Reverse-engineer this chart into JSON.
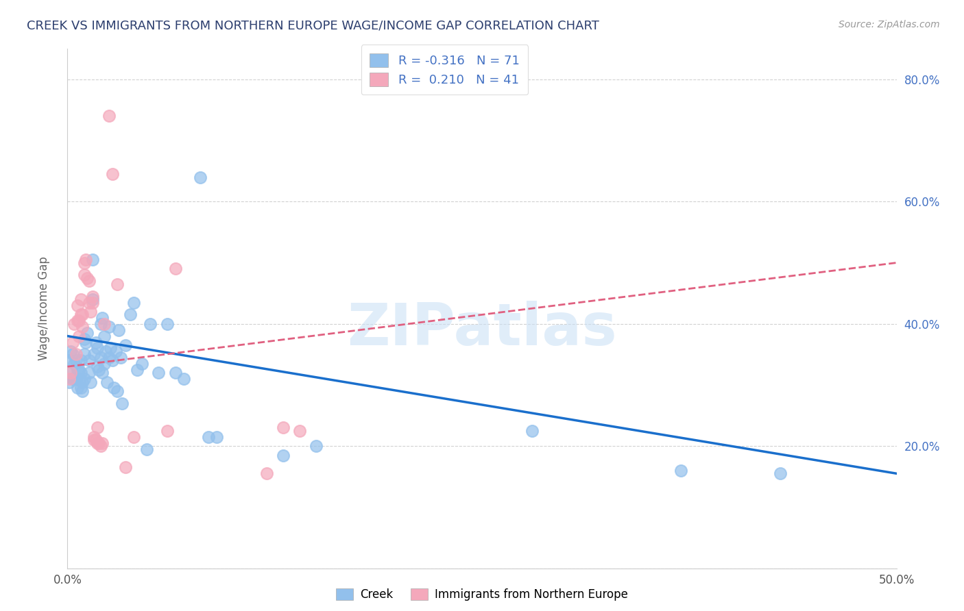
{
  "title": "CREEK VS IMMIGRANTS FROM NORTHERN EUROPE WAGE/INCOME GAP CORRELATION CHART",
  "source": "Source: ZipAtlas.com",
  "ylabel": "Wage/Income Gap",
  "xlabel_creek": "Creek",
  "xlabel_immigrants": "Immigrants from Northern Europe",
  "xmin": 0.0,
  "xmax": 0.5,
  "ymin": 0.0,
  "ymax": 0.85,
  "creek_color": "#92c0ec",
  "immigrants_color": "#f4a8bb",
  "creek_R": -0.316,
  "creek_N": 71,
  "immigrants_R": 0.21,
  "immigrants_N": 41,
  "creek_line_color": "#1a6fcc",
  "immigrants_line_color": "#e06080",
  "watermark": "ZIPatlas",
  "watermark_color": "#c8dff5",
  "title_color": "#2c3e6e",
  "source_color": "#999999",
  "grid_color": "#cccccc",
  "right_axis_color": "#4472c4",
  "creek_points_x": [
    0.001,
    0.001,
    0.002,
    0.002,
    0.003,
    0.003,
    0.004,
    0.004,
    0.005,
    0.005,
    0.006,
    0.006,
    0.007,
    0.007,
    0.008,
    0.008,
    0.008,
    0.009,
    0.009,
    0.01,
    0.01,
    0.01,
    0.011,
    0.012,
    0.013,
    0.013,
    0.014,
    0.015,
    0.015,
    0.016,
    0.017,
    0.018,
    0.018,
    0.019,
    0.02,
    0.02,
    0.021,
    0.021,
    0.022,
    0.022,
    0.023,
    0.024,
    0.025,
    0.025,
    0.026,
    0.027,
    0.028,
    0.029,
    0.03,
    0.031,
    0.032,
    0.033,
    0.035,
    0.038,
    0.04,
    0.042,
    0.045,
    0.048,
    0.05,
    0.055,
    0.06,
    0.065,
    0.07,
    0.08,
    0.085,
    0.09,
    0.13,
    0.15,
    0.28,
    0.37,
    0.43
  ],
  "creek_points_y": [
    0.34,
    0.305,
    0.355,
    0.32,
    0.35,
    0.31,
    0.335,
    0.31,
    0.31,
    0.34,
    0.325,
    0.295,
    0.325,
    0.31,
    0.34,
    0.32,
    0.295,
    0.305,
    0.29,
    0.35,
    0.375,
    0.31,
    0.37,
    0.385,
    0.32,
    0.34,
    0.305,
    0.505,
    0.44,
    0.35,
    0.37,
    0.36,
    0.33,
    0.325,
    0.4,
    0.345,
    0.41,
    0.32,
    0.38,
    0.335,
    0.355,
    0.305,
    0.395,
    0.345,
    0.36,
    0.34,
    0.295,
    0.355,
    0.29,
    0.39,
    0.345,
    0.27,
    0.365,
    0.415,
    0.435,
    0.325,
    0.335,
    0.195,
    0.4,
    0.32,
    0.4,
    0.32,
    0.31,
    0.64,
    0.215,
    0.215,
    0.185,
    0.2,
    0.225,
    0.16,
    0.155
  ],
  "immigrants_points_x": [
    0.001,
    0.002,
    0.003,
    0.004,
    0.005,
    0.006,
    0.006,
    0.007,
    0.007,
    0.008,
    0.008,
    0.009,
    0.009,
    0.01,
    0.01,
    0.011,
    0.012,
    0.013,
    0.013,
    0.014,
    0.015,
    0.015,
    0.016,
    0.016,
    0.017,
    0.018,
    0.018,
    0.019,
    0.02,
    0.021,
    0.022,
    0.025,
    0.027,
    0.03,
    0.035,
    0.04,
    0.06,
    0.065,
    0.12,
    0.13,
    0.14
  ],
  "immigrants_points_y": [
    0.31,
    0.32,
    0.37,
    0.4,
    0.35,
    0.405,
    0.43,
    0.38,
    0.405,
    0.44,
    0.415,
    0.395,
    0.415,
    0.48,
    0.5,
    0.505,
    0.475,
    0.47,
    0.435,
    0.42,
    0.445,
    0.435,
    0.215,
    0.21,
    0.21,
    0.205,
    0.23,
    0.205,
    0.2,
    0.205,
    0.4,
    0.74,
    0.645,
    0.465,
    0.165,
    0.215,
    0.225,
    0.49,
    0.155,
    0.23,
    0.225
  ]
}
